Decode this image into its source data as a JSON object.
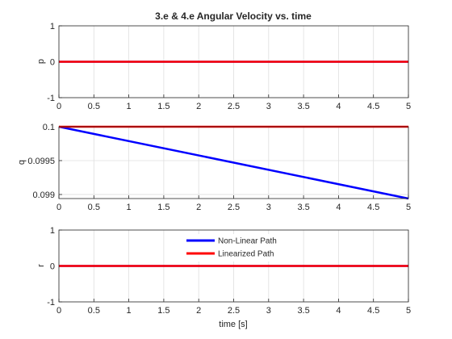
{
  "chart_data": [
    {
      "type": "line",
      "title": "3.e & 4.e Angular Velocity vs. time",
      "xlabel": "",
      "ylabel": "p",
      "xlim": [
        0,
        5
      ],
      "ylim": [
        -1,
        1
      ],
      "x_ticks": [
        "0",
        "0.5",
        "1",
        "1.5",
        "2",
        "2.5",
        "3",
        "3.5",
        "4",
        "4.5",
        "5"
      ],
      "y_ticks": [
        "-1",
        "0",
        "1"
      ],
      "y_tick_values": [
        -1,
        0,
        1
      ],
      "grid": true,
      "series": [
        {
          "color": "#0000ff",
          "x": [
            0,
            5
          ],
          "y": [
            0,
            0
          ]
        },
        {
          "color": "#ff0000",
          "x": [
            0,
            5
          ],
          "y": [
            0,
            0
          ]
        }
      ]
    },
    {
      "type": "line",
      "title": "",
      "xlabel": "",
      "ylabel": "q",
      "xlim": [
        0,
        5
      ],
      "ylim": [
        0.09894,
        0.1
      ],
      "x_ticks": [
        "0",
        "0.5",
        "1",
        "1.5",
        "2",
        "2.5",
        "3",
        "3.5",
        "4",
        "4.5",
        "5"
      ],
      "y_ticks": [
        "0.099",
        "0.0995",
        "0.1"
      ],
      "y_tick_values": [
        0.099,
        0.0995,
        0.1
      ],
      "grid": true,
      "series": [
        {
          "color": "#0000ff",
          "x": [
            0,
            5
          ],
          "y": [
            0.1,
            0.09894
          ]
        },
        {
          "color": "#ff0000",
          "x": [
            0,
            5
          ],
          "y": [
            0.1,
            0.1
          ]
        }
      ]
    },
    {
      "type": "line",
      "title": "",
      "xlabel": "time [s]",
      "ylabel": "r",
      "xlim": [
        0,
        5
      ],
      "ylim": [
        -1,
        1
      ],
      "x_ticks": [
        "0",
        "0.5",
        "1",
        "1.5",
        "2",
        "2.5",
        "3",
        "3.5",
        "4",
        "4.5",
        "5"
      ],
      "y_ticks": [
        "-1",
        "0",
        "1"
      ],
      "y_tick_values": [
        -1,
        0,
        1
      ],
      "grid": true,
      "legend": {
        "placement": "top-center",
        "entries": [
          {
            "name": "Non-Linear Path",
            "color": "#0000ff"
          },
          {
            "name": "Linearized Path",
            "color": "#ff0000"
          }
        ]
      },
      "series": [
        {
          "color": "#0000ff",
          "x": [
            0,
            5
          ],
          "y": [
            0,
            0
          ]
        },
        {
          "color": "#ff0000",
          "x": [
            0,
            5
          ],
          "y": [
            0,
            0
          ]
        }
      ]
    }
  ]
}
